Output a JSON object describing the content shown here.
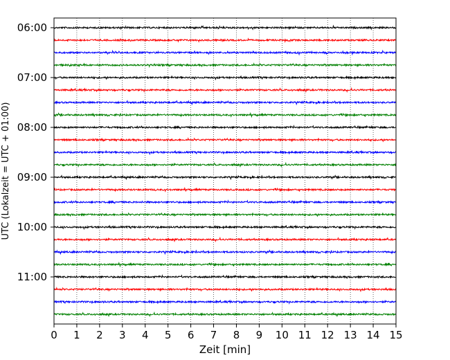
{
  "chart_data": {
    "type": "line",
    "title": "",
    "xlabel": "Zeit  [min]",
    "ylabel": "UTC (Lokalzeit = UTC + 01:00)",
    "xlim": [
      0,
      15
    ],
    "x_ticks": [
      0,
      1,
      2,
      3,
      4,
      5,
      6,
      7,
      8,
      9,
      10,
      11,
      12,
      13,
      14,
      15
    ],
    "y_ticks": [
      {
        "row": 0,
        "label": "06:00"
      },
      {
        "row": 4,
        "label": "07:00"
      },
      {
        "row": 8,
        "label": "08:00"
      },
      {
        "row": 12,
        "label": "09:00"
      },
      {
        "row": 16,
        "label": "10:00"
      },
      {
        "row": 20,
        "label": "11:00"
      }
    ],
    "trace_count": 24,
    "trace_interval_min": 15,
    "trace_colors": [
      "#000000",
      "#ff0000",
      "#0000ff",
      "#008000"
    ],
    "vertical_grid": true,
    "grid_style": "dotted",
    "legend": "none"
  }
}
